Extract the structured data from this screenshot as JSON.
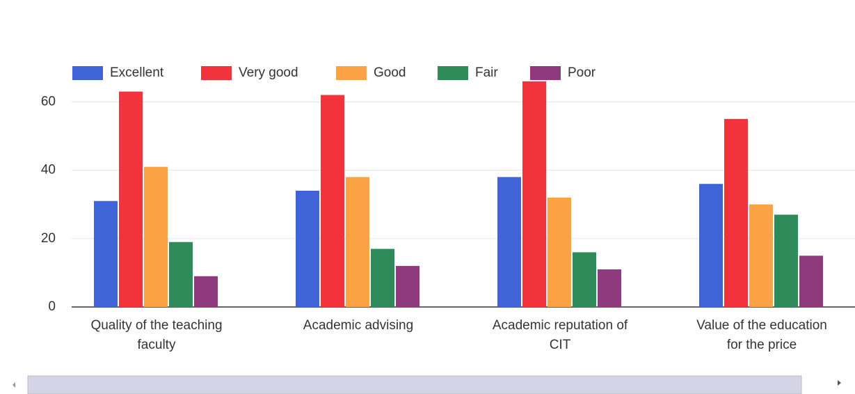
{
  "chart_data": {
    "type": "bar",
    "categories": [
      "Quality of the teaching faculty",
      "Academic advising",
      "Academic reputation of CIT",
      "Value of the education for the price"
    ],
    "series": [
      {
        "name": "Excellent",
        "color": "#4163d8",
        "values": [
          31,
          34,
          38,
          36
        ]
      },
      {
        "name": "Very good",
        "color": "#f2333d",
        "values": [
          63,
          62,
          66,
          55
        ]
      },
      {
        "name": "Good",
        "color": "#fba244",
        "values": [
          41,
          38,
          32,
          30
        ]
      },
      {
        "name": "Fair",
        "color": "#2f8c5a",
        "values": [
          19,
          17,
          16,
          27
        ]
      },
      {
        "name": "Poor",
        "color": "#8f3a7c",
        "values": [
          9,
          12,
          11,
          15
        ]
      }
    ],
    "ylim": [
      0,
      68
    ],
    "yticks": [
      0,
      20,
      40,
      60
    ],
    "grid": true,
    "legend": "top"
  }
}
